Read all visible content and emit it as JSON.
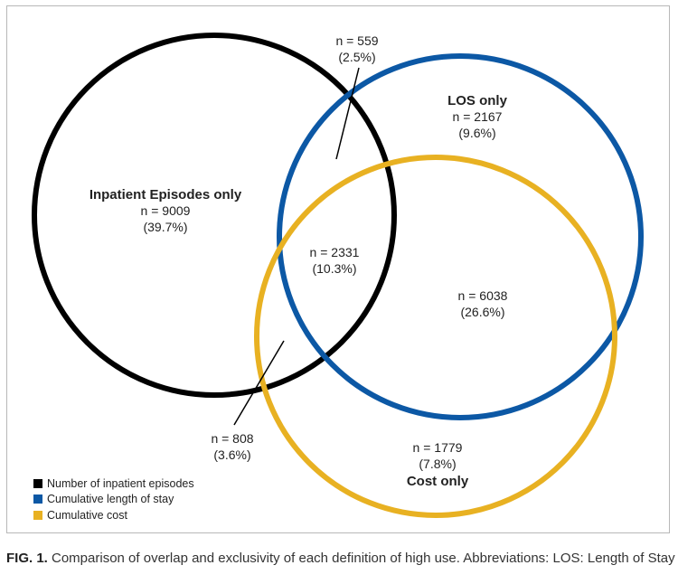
{
  "sets": [
    {
      "key": "inpatient",
      "legend": "Number of inpatient episodes",
      "color": "#000000"
    },
    {
      "key": "los",
      "legend": "Cumulative length of stay",
      "color": "#0c58a5"
    },
    {
      "key": "cost",
      "legend": "Cumulative cost",
      "color": "#e8b122"
    }
  ],
  "regions": {
    "inpatient_only": {
      "title": "Inpatient Episodes only",
      "n": "n = 9009",
      "pct": "(39.7%)"
    },
    "inpatient_los": {
      "n": "n = 559",
      "pct": "(2.5%)"
    },
    "los_only": {
      "title": "LOS only",
      "n": "n = 2167",
      "pct": "(9.6%)"
    },
    "all_three": {
      "n": "n = 2331",
      "pct": "(10.3%)"
    },
    "los_cost": {
      "n": "n = 6038",
      "pct": "(26.6%)"
    },
    "inpatient_cost": {
      "n": "n = 808",
      "pct": "(3.6%)"
    },
    "cost_only": {
      "title": "Cost only",
      "n": "n = 1779",
      "pct": "(7.8%)"
    }
  },
  "caption": {
    "lead": "FIG. 1.",
    "text": " Comparison of overlap and exclusivity of each definition of high use. Abbreviations: LOS: Length of Stay"
  }
}
